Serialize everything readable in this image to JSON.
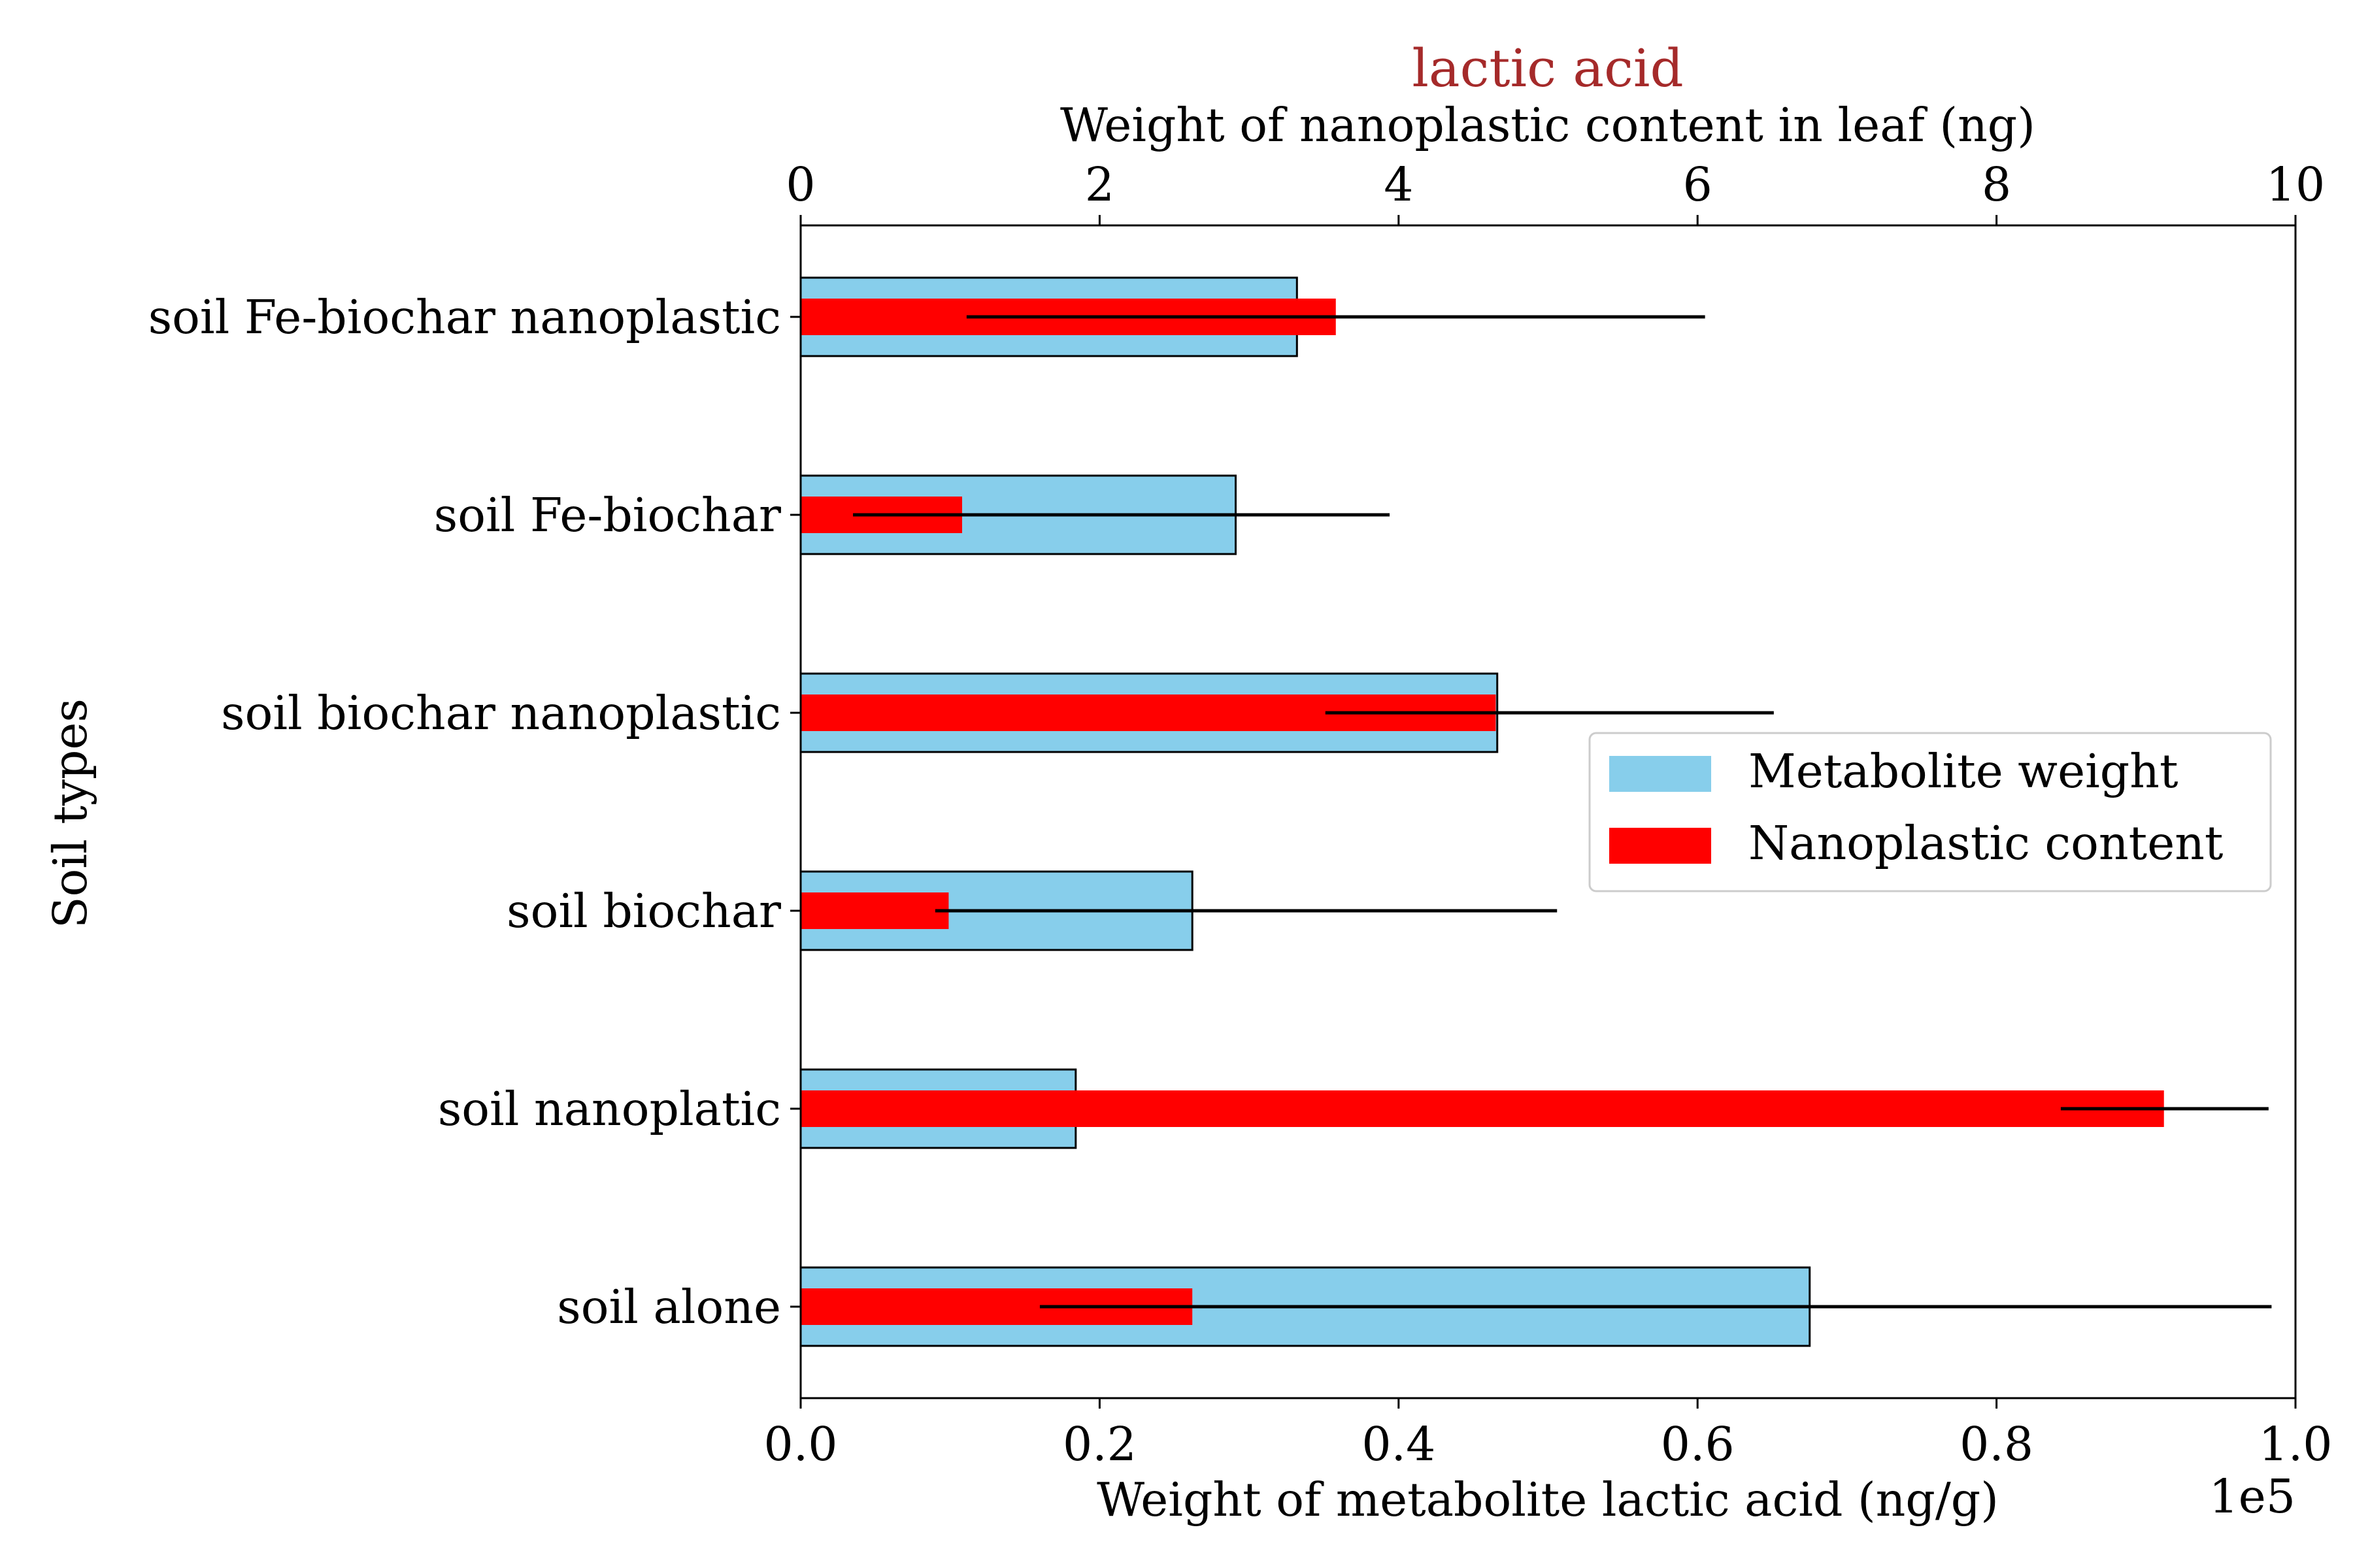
{
  "chart_data": {
    "type": "bar",
    "orientation": "horizontal",
    "title": "lactic acid",
    "title_color": "#a52a2a",
    "xlabel_bottom": "Weight of metabolite lactic acid (ng/g)",
    "xlabel_top": "Weight of nanoplastic content in leaf (ng)",
    "ylabel": "Soil types",
    "x_offset_label": "1e5",
    "xlim_bottom": [
      0,
      1.0
    ],
    "xlim_top": [
      0,
      10
    ],
    "xticks_bottom": [
      "0.0",
      "0.2",
      "0.4",
      "0.6",
      "0.8",
      "1.0"
    ],
    "xticks_top": [
      "0",
      "2",
      "4",
      "6",
      "8",
      "10"
    ],
    "categories": [
      "soil Fe-biochar nanoplastic",
      "soil Fe-biochar",
      "soil biochar nanoplastic",
      "soil biochar",
      "soil nanoplatic",
      "soil alone"
    ],
    "series": [
      {
        "name": "Metabolite weight",
        "color": "#87ceeb",
        "axis": "bottom",
        "values": [
          33200,
          29100,
          46600,
          26200,
          18400,
          67500
        ],
        "err_minus": [
          null,
          21600,
          null,
          null,
          null,
          30900
        ],
        "err_plus": [
          null,
          10300,
          null,
          null,
          null,
          30900
        ]
      },
      {
        "name": "Nanoplastic content",
        "color": "#ff0000",
        "axis": "top",
        "values": [
          3.58,
          1.08,
          4.65,
          0.99,
          9.12,
          2.62
        ],
        "err_minus": [
          2.47,
          0.73,
          1.14,
          0.09,
          0.69,
          1.02
        ],
        "err_plus": [
          2.47,
          0.73,
          1.86,
          4.07,
          0.7,
          7.16
        ]
      }
    ],
    "legend": {
      "position": "center-right"
    },
    "grid": false
  }
}
